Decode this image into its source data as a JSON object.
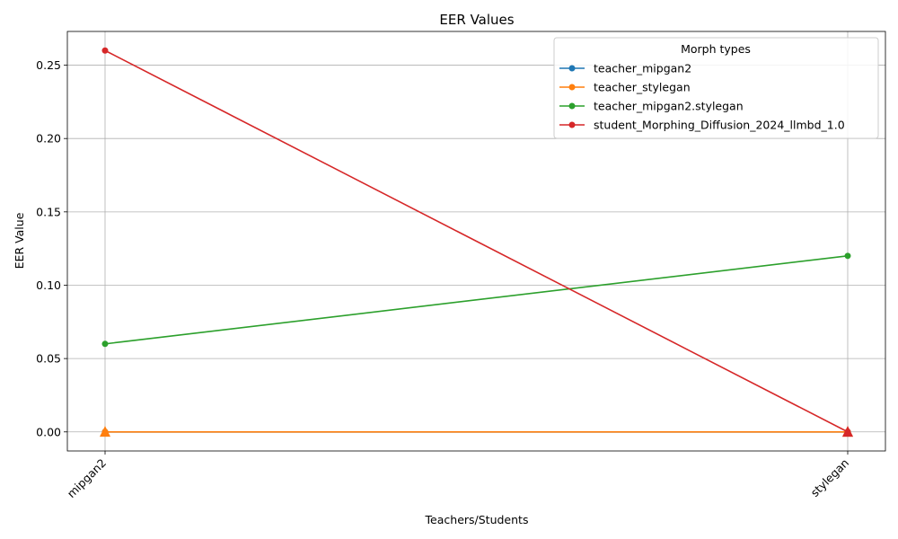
{
  "chart_data": {
    "type": "line",
    "title": "EER Values",
    "xlabel": "Teachers/Students",
    "ylabel": "EER Value",
    "categories": [
      "mipgan2",
      "stylegan"
    ],
    "ylim": [
      -0.013,
      0.273
    ],
    "yticks": [
      "0.00",
      "0.05",
      "0.10",
      "0.15",
      "0.20",
      "0.25"
    ],
    "grid": true,
    "legend": {
      "title": "Morph types",
      "placement": "top-right"
    },
    "series": [
      {
        "name": "teacher_mipgan2",
        "values": [
          0.0,
          0.0
        ],
        "color": "#1f77b4"
      },
      {
        "name": "teacher_stylegan",
        "values": [
          0.0,
          0.0
        ],
        "color": "#ff7f0e"
      },
      {
        "name": "teacher_mipgan2.stylegan",
        "values": [
          0.06,
          0.12
        ],
        "color": "#2ca02c"
      },
      {
        "name": "student_Morphing_Diffusion_2024_llmbd_1.0",
        "values": [
          0.26,
          0.0
        ],
        "color": "#d62728"
      }
    ],
    "zero_markers": {
      "shape": "triangle",
      "series": [
        "teacher_stylegan",
        "student_Morphing_Diffusion_2024_llmbd_1.0"
      ]
    }
  }
}
